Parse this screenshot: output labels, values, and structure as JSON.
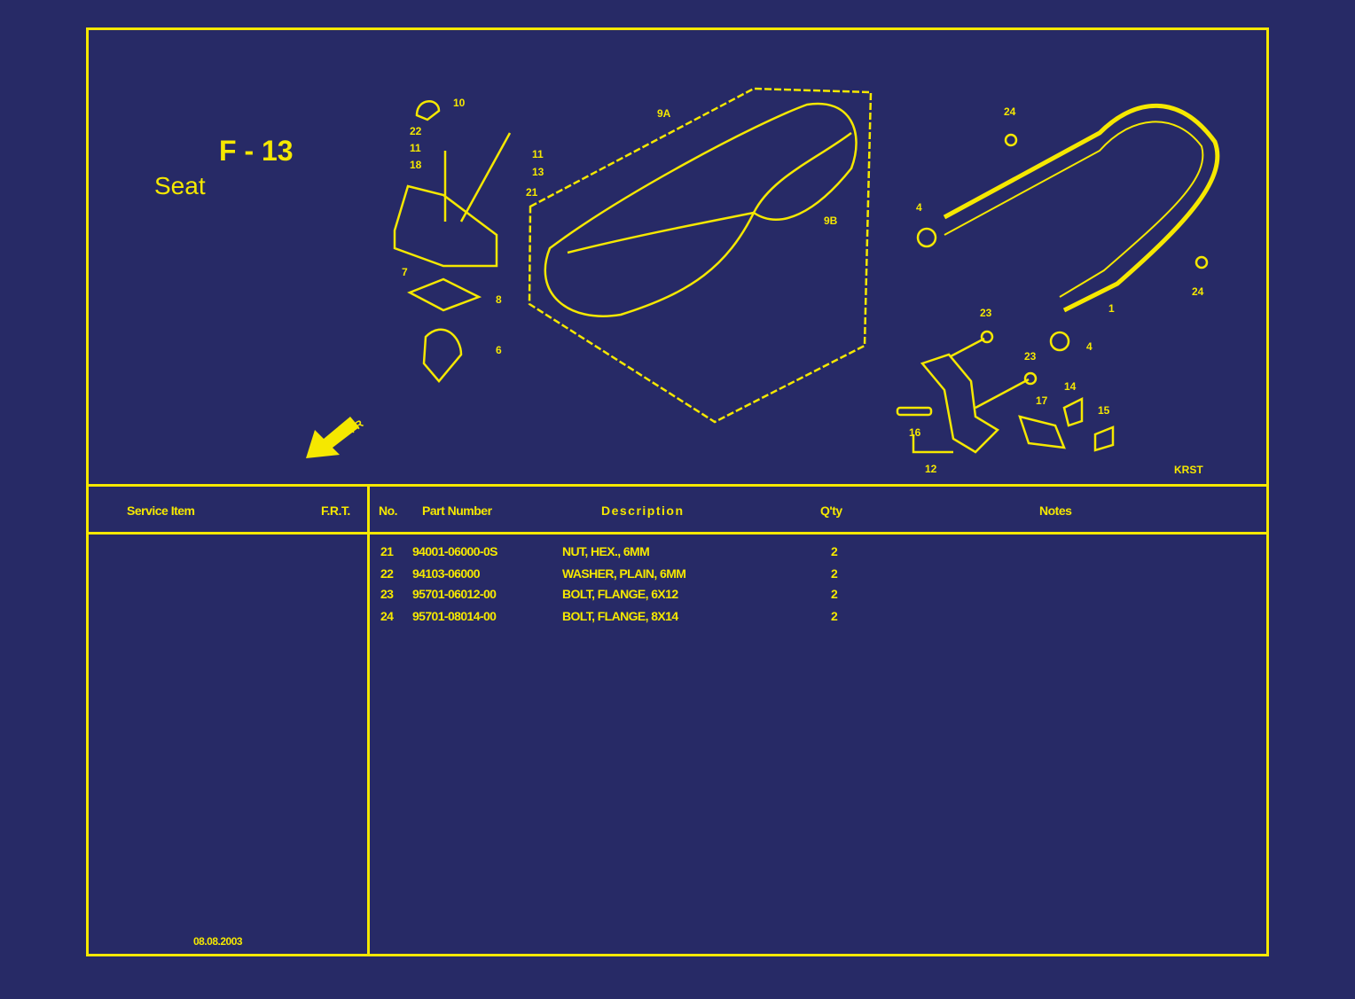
{
  "page": {
    "code": "F - 13",
    "title": "Seat",
    "direction_label": "FR",
    "drawing_code": "KRST",
    "date": "08.08.2003"
  },
  "callouts": [
    "10",
    "22",
    "11",
    "18",
    "11",
    "13",
    "21",
    "7",
    "8",
    "6",
    "9A",
    "9B",
    "24",
    "4",
    "1",
    "24",
    "23",
    "4",
    "23",
    "14",
    "17",
    "15",
    "16",
    "12"
  ],
  "table": {
    "headers": {
      "service_item": "Service Item",
      "frt": "F.R.T.",
      "no": "No.",
      "part_number": "Part Number",
      "description": "Description",
      "qty": "Q'ty",
      "notes": "Notes"
    },
    "rows": [
      {
        "no": "21",
        "part_number": "94001-06000-0S",
        "description": "NUT, HEX., 6MM",
        "qty": "2"
      },
      {
        "no": "22",
        "part_number": "94103-06000",
        "description": "WASHER, PLAIN, 6MM",
        "qty": "2"
      },
      {
        "no": "23",
        "part_number": "95701-06012-00",
        "description": "BOLT, FLANGE, 6X12",
        "qty": "2"
      },
      {
        "no": "24",
        "part_number": "95701-08014-00",
        "description": "BOLT, FLANGE, 8X14",
        "qty": "2"
      }
    ]
  },
  "colors": {
    "background": "#272a66",
    "ink": "#f5e800"
  }
}
